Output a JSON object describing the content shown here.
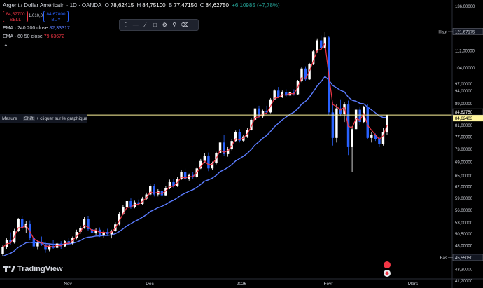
{
  "header": {
    "symbol": "Argent / Dollar Américain · 1D · OANDA",
    "o_label": "O",
    "o": "78,62415",
    "h_label": "H",
    "h": "84,75100",
    "b_label": "B",
    "b": "77,47150",
    "c_label": "C",
    "c": "84,62750",
    "change": "+6,10985 (+7,78%)"
  },
  "trade": {
    "sell_price": "84,57700",
    "sell_label": "SELL",
    "spread": "1.010,0",
    "buy_price": "84,67800",
    "buy_label": "BUY"
  },
  "indicators": {
    "ema240_label": "EMA · 240 200 close",
    "ema240_value": "82,33317",
    "ema60_label": "EMA · 60 50 close",
    "ema60_value": "79,63672"
  },
  "measure": {
    "label": "Mesure",
    "key": "Shift",
    "hint": "+ cliquer sur le graphique"
  },
  "branding": {
    "name": "TradingView"
  },
  "colors": {
    "up": "#ffffff",
    "down": "#2962ff",
    "ema_fast": "#f23645",
    "ema_slow": "#5b7cff",
    "hline": "#fff59d",
    "bg": "#000000"
  },
  "chart_data": {
    "type": "candlestick",
    "y_scale": "log",
    "ylim": [
      41.5,
      137
    ],
    "y_ticks": [
      "136,00000",
      "121,67175",
      "112,00000",
      "104,00000",
      "97,00000",
      "94,00000",
      "89,00000",
      "84,62750",
      "84,62403",
      "81,00000",
      "77,00000",
      "73,00000",
      "69,00000",
      "65,00000",
      "62,00000",
      "59,00000",
      "56,00000",
      "53,00000",
      "50,50000",
      "48,00000",
      "45,55050",
      "43,30000",
      "41,20000"
    ],
    "x_labels": [
      "Nov",
      "Déc",
      "2026",
      "Févr",
      "Mars"
    ],
    "haut": {
      "label": "Haut",
      "value": "121,67175"
    },
    "bas": {
      "label": "Bas",
      "value": "45,55050"
    },
    "last_price": "84,62750",
    "hline_price": "84,62403",
    "candles": [
      [
        46.2,
        48.0,
        45.8,
        47.6
      ],
      [
        47.6,
        49.5,
        47.3,
        49.1
      ],
      [
        49.1,
        50.8,
        48.2,
        48.6
      ],
      [
        48.6,
        51.6,
        48.4,
        51.2
      ],
      [
        51.2,
        54.1,
        50.9,
        53.8
      ],
      [
        53.8,
        54.6,
        51.4,
        51.9
      ],
      [
        51.9,
        53.3,
        50.6,
        52.8
      ],
      [
        52.8,
        53.5,
        49.1,
        49.6
      ],
      [
        49.6,
        50.1,
        47.2,
        47.8
      ],
      [
        47.8,
        48.9,
        47.1,
        48.5
      ],
      [
        48.5,
        49.9,
        47.9,
        48.2
      ],
      [
        48.2,
        48.8,
        46.5,
        47.1
      ],
      [
        47.1,
        48.2,
        46.8,
        47.9
      ],
      [
        47.9,
        49.1,
        47.3,
        47.5
      ],
      [
        47.5,
        48.7,
        47.1,
        48.4
      ],
      [
        48.4,
        48.9,
        47.3,
        47.8
      ],
      [
        47.8,
        49.1,
        47.6,
        48.9
      ],
      [
        48.9,
        49.6,
        48.1,
        48.5
      ],
      [
        48.5,
        49.9,
        48.1,
        49.6
      ],
      [
        49.6,
        51.4,
        49.3,
        50.9
      ],
      [
        50.9,
        52.3,
        50.5,
        51.8
      ],
      [
        51.8,
        54.4,
        51.6,
        53.9
      ],
      [
        53.9,
        54.6,
        51.2,
        51.5
      ],
      [
        51.5,
        52.1,
        50.2,
        50.6
      ],
      [
        50.6,
        51.8,
        50.3,
        51.4
      ],
      [
        51.4,
        51.9,
        49.8,
        50.2
      ],
      [
        50.2,
        51.3,
        49.6,
        50.9
      ],
      [
        50.9,
        51.6,
        50.0,
        50.4
      ],
      [
        50.4,
        51.4,
        49.5,
        51.1
      ],
      [
        51.1,
        53.1,
        50.9,
        52.6
      ],
      [
        52.6,
        55.6,
        52.4,
        55.1
      ],
      [
        55.1,
        57.3,
        54.8,
        56.7
      ],
      [
        56.7,
        58.8,
        56.1,
        58.2
      ],
      [
        58.2,
        58.9,
        56.3,
        56.8
      ],
      [
        56.8,
        58.3,
        56.4,
        57.9
      ],
      [
        57.9,
        58.6,
        57.1,
        57.5
      ],
      [
        57.5,
        59.3,
        57.2,
        58.8
      ],
      [
        58.8,
        60.4,
        58.5,
        59.9
      ],
      [
        59.9,
        62.6,
        59.6,
        62.1
      ],
      [
        62.1,
        62.8,
        59.4,
        59.9
      ],
      [
        59.9,
        61.3,
        59.4,
        60.8
      ],
      [
        60.8,
        61.6,
        59.3,
        59.7
      ],
      [
        59.7,
        62.1,
        59.5,
        61.6
      ],
      [
        61.6,
        63.9,
        61.3,
        63.2
      ],
      [
        63.2,
        64.1,
        61.6,
        62.1
      ],
      [
        62.1,
        64.6,
        61.9,
        64.1
      ],
      [
        64.1,
        66.6,
        63.8,
        66.1
      ],
      [
        66.1,
        67.1,
        63.6,
        64.1
      ],
      [
        64.1,
        65.6,
        63.6,
        65.2
      ],
      [
        65.2,
        66.1,
        64.1,
        64.6
      ],
      [
        64.6,
        67.6,
        64.3,
        67.1
      ],
      [
        67.1,
        69.9,
        66.9,
        69.3
      ],
      [
        69.3,
        71.6,
        68.6,
        70.9
      ],
      [
        70.9,
        71.9,
        66.3,
        67.1
      ],
      [
        67.1,
        69.1,
        66.6,
        68.6
      ],
      [
        68.6,
        72.1,
        68.3,
        71.7
      ],
      [
        71.7,
        75.6,
        71.3,
        75.1
      ],
      [
        75.1,
        77.6,
        70.9,
        71.4
      ],
      [
        71.4,
        73.6,
        70.6,
        72.9
      ],
      [
        72.9,
        76.1,
        72.6,
        75.6
      ],
      [
        75.6,
        79.1,
        75.2,
        78.6
      ],
      [
        78.6,
        79.6,
        75.1,
        75.7
      ],
      [
        75.7,
        77.6,
        75.2,
        77.1
      ],
      [
        77.1,
        79.9,
        76.6,
        79.4
      ],
      [
        79.4,
        83.6,
        79.1,
        82.9
      ],
      [
        82.9,
        87.6,
        82.6,
        87.1
      ],
      [
        87.1,
        88.1,
        83.6,
        84.1
      ],
      [
        84.1,
        86.6,
        83.6,
        86.1
      ],
      [
        86.1,
        88.1,
        85.1,
        85.6
      ],
      [
        85.6,
        91.1,
        85.3,
        90.6
      ],
      [
        90.6,
        94.6,
        90.3,
        94.1
      ],
      [
        94.1,
        95.6,
        91.1,
        91.6
      ],
      [
        91.6,
        94.1,
        91.1,
        93.6
      ],
      [
        93.6,
        94.6,
        91.6,
        92.1
      ],
      [
        92.1,
        94.1,
        91.6,
        93.6
      ],
      [
        93.6,
        94.6,
        92.1,
        92.6
      ],
      [
        92.6,
        98.6,
        92.3,
        98.1
      ],
      [
        98.1,
        104.1,
        97.6,
        103.6
      ],
      [
        103.6,
        104.6,
        98.1,
        98.8
      ],
      [
        98.8,
        106.1,
        98.6,
        105.6
      ],
      [
        105.6,
        112.1,
        105.1,
        111.6
      ],
      [
        111.6,
        118.1,
        111.1,
        117.1
      ],
      [
        117.1,
        119.6,
        112.1,
        113.1
      ],
      [
        113.1,
        121.6,
        112.6,
        118.6
      ],
      [
        118.6,
        119.1,
        84.6,
        85.6
      ],
      [
        85.6,
        89.6,
        74.1,
        76.6
      ],
      [
        76.6,
        88.6,
        75.1,
        87.1
      ],
      [
        87.1,
        90.6,
        84.1,
        85.1
      ],
      [
        85.1,
        89.6,
        82.1,
        88.6
      ],
      [
        88.6,
        90.1,
        71.1,
        73.6
      ],
      [
        73.6,
        80.6,
        66.1,
        79.6
      ],
      [
        79.6,
        87.1,
        79.1,
        86.6
      ],
      [
        86.6,
        87.6,
        81.1,
        82.1
      ],
      [
        82.1,
        88.1,
        81.6,
        87.6
      ],
      [
        87.6,
        88.6,
        76.1,
        76.6
      ],
      [
        76.6,
        78.6,
        75.1,
        77.6
      ],
      [
        77.6,
        78.1,
        75.6,
        76.1
      ],
      [
        76.1,
        77.1,
        73.6,
        74.6
      ],
      [
        74.6,
        80.1,
        74.1,
        78.6
      ],
      [
        78.6,
        84.8,
        77.5,
        84.6
      ]
    ]
  }
}
